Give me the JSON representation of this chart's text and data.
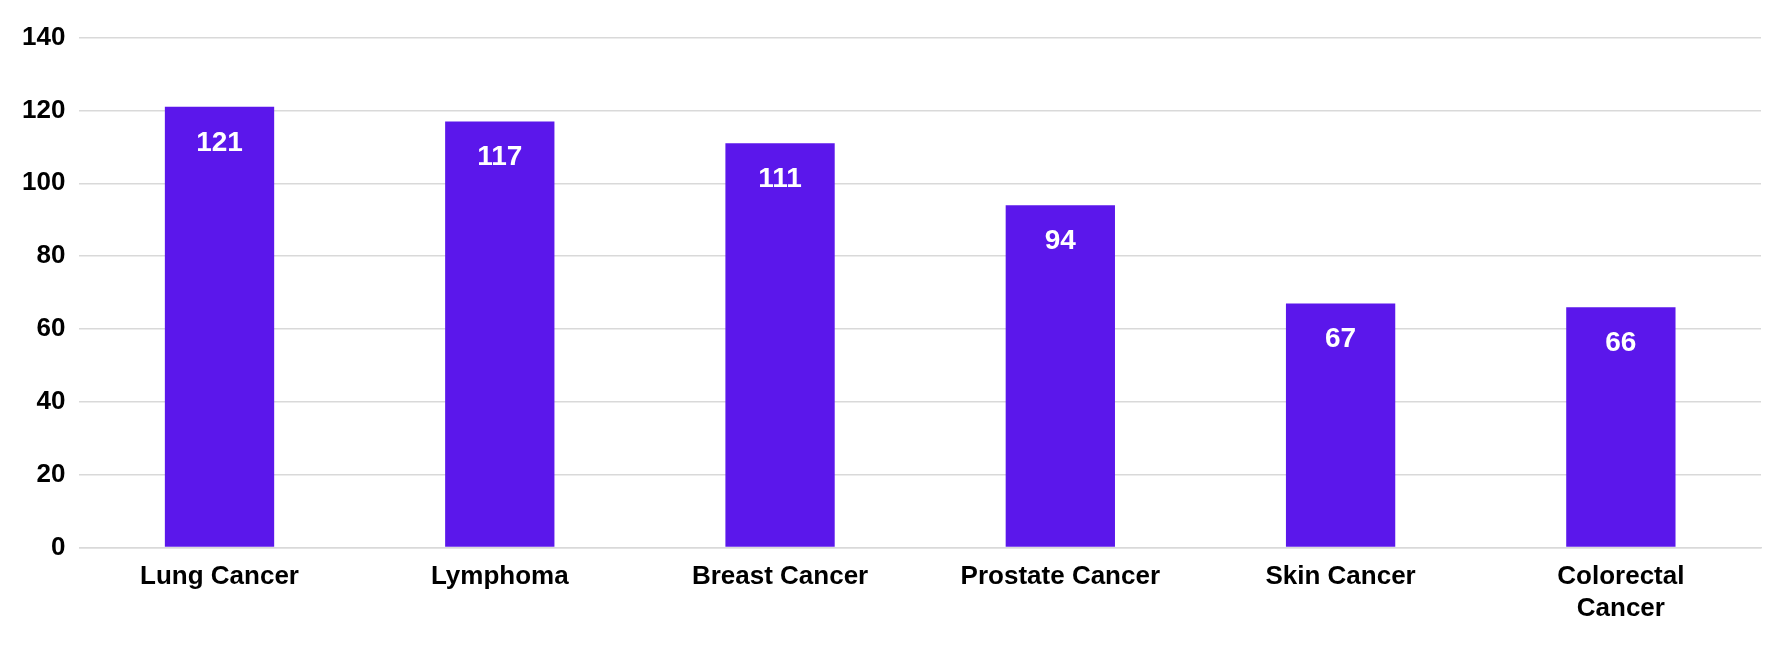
{
  "chart_data": {
    "type": "bar",
    "categories": [
      "Lung Cancer",
      "Lymphoma",
      "Breast Cancer",
      "Prostate Cancer",
      "Skin Cancer",
      "Colorectal Cancer"
    ],
    "values": [
      121,
      117,
      111,
      94,
      67,
      66
    ],
    "color": "#5b17eb",
    "ylim": [
      0,
      140
    ],
    "yticks": [
      0,
      20,
      40,
      60,
      80,
      100,
      120,
      140
    ],
    "grid": "y",
    "data_labels": true
  }
}
